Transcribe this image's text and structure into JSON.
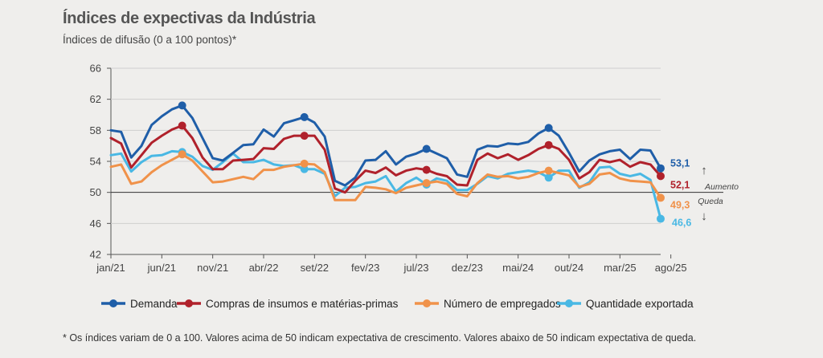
{
  "title": "Índices de expectivas da Indústria",
  "subtitle": "Índices de difusão (0 a 100 pontos)*",
  "footnote": "* Os índices variam de 0 a 100. Valores acima de 50 indicam expectativa de crescimento. Valores abaixo de 50 indicam expectativa de queda.",
  "annotations": {
    "up": "Aumento",
    "down": "Queda",
    "up_arrow": "↑",
    "down_arrow": "↓"
  },
  "chart_data": {
    "type": "line",
    "ylim": [
      42,
      66
    ],
    "yticks": [
      42,
      46,
      50,
      54,
      58,
      62,
      66
    ],
    "xtick_labels": [
      "jan/21",
      "jun/21",
      "nov/21",
      "abr/22",
      "set/22",
      "fev/23",
      "jul/23",
      "dez/23",
      "mai/24",
      "out/24",
      "mar/25",
      "ago/25"
    ],
    "xtick_indices": [
      0,
      5,
      10,
      15,
      20,
      25,
      30,
      35,
      40,
      45,
      50,
      55
    ],
    "reference_line": 50,
    "series": [
      {
        "name": "Demanda",
        "color": "#1f5ea8",
        "values": [
          58.0,
          57.8,
          54.5,
          56.0,
          58.7,
          59.8,
          60.7,
          61.2,
          59.6,
          57.0,
          54.4,
          54.1,
          55.1,
          56.1,
          56.2,
          58.1,
          57.2,
          58.9,
          59.3,
          59.7,
          59.0,
          57.2,
          51.5,
          50.9,
          51.9,
          54.1,
          54.2,
          55.3,
          53.6,
          54.6,
          55.0,
          55.6,
          55.0,
          54.4,
          52.3,
          52.0,
          55.5,
          56.0,
          55.9,
          56.3,
          56.2,
          56.5,
          57.6,
          58.3,
          57.3,
          55.1,
          52.7,
          54.1,
          54.9,
          55.3,
          55.5,
          54.3,
          55.5,
          55.4,
          53.1
        ],
        "markers": [
          7,
          19,
          31,
          43
        ],
        "end_label": "53,1"
      },
      {
        "name": "Compras de insumos e matérias-primas",
        "color": "#b0212b",
        "values": [
          57.0,
          56.3,
          53.2,
          54.8,
          56.4,
          57.3,
          58.1,
          58.6,
          57.0,
          54.5,
          53.0,
          53.0,
          54.1,
          54.2,
          54.3,
          55.7,
          55.6,
          56.9,
          57.3,
          57.3,
          57.3,
          55.5,
          50.5,
          50.0,
          51.5,
          52.8,
          52.5,
          53.2,
          52.2,
          52.8,
          53.1,
          52.9,
          52.4,
          52.1,
          51.0,
          50.9,
          54.2,
          55.0,
          54.4,
          54.9,
          54.2,
          54.8,
          55.6,
          56.1,
          55.6,
          54.2,
          51.8,
          52.6,
          54.2,
          53.9,
          54.2,
          53.3,
          53.9,
          53.6,
          52.1
        ],
        "markers": [
          7,
          19,
          31,
          43
        ],
        "end_label": "52,1"
      },
      {
        "name": "Número de empregados",
        "color": "#f0924a",
        "values": [
          53.3,
          53.6,
          51.1,
          51.4,
          52.6,
          53.5,
          54.2,
          54.9,
          54.1,
          52.7,
          51.3,
          51.4,
          51.7,
          52.0,
          51.7,
          52.9,
          52.9,
          53.3,
          53.5,
          53.7,
          53.6,
          52.6,
          49.0,
          49.0,
          49.0,
          50.7,
          50.6,
          50.4,
          49.9,
          50.6,
          50.9,
          51.2,
          51.4,
          51.1,
          49.8,
          49.5,
          51.2,
          52.3,
          52.0,
          52.1,
          51.8,
          52.0,
          52.5,
          52.8,
          52.5,
          52.2,
          50.7,
          51.1,
          52.3,
          52.5,
          51.8,
          51.5,
          51.4,
          51.3,
          49.3
        ],
        "markers": [
          7,
          19,
          31,
          43
        ],
        "end_label": "49,3"
      },
      {
        "name": "Quantidade exportada",
        "color": "#49b8e4",
        "values": [
          54.8,
          55.0,
          52.7,
          53.9,
          54.7,
          54.8,
          55.3,
          55.2,
          54.6,
          53.4,
          52.9,
          53.9,
          55.0,
          53.9,
          53.9,
          54.2,
          53.6,
          53.4,
          53.5,
          53.0,
          53.0,
          52.4,
          49.5,
          50.6,
          50.7,
          51.2,
          51.4,
          52.1,
          50.1,
          51.2,
          51.9,
          51.0,
          51.8,
          51.5,
          50.3,
          50.3,
          51.1,
          52.1,
          51.8,
          52.4,
          52.6,
          52.8,
          52.6,
          51.9,
          52.8,
          52.8,
          50.6,
          51.3,
          53.2,
          53.3,
          52.4,
          52.1,
          52.4,
          51.6,
          46.6
        ],
        "markers": [
          7,
          19,
          31,
          43
        ],
        "end_label": "46,6"
      }
    ]
  }
}
